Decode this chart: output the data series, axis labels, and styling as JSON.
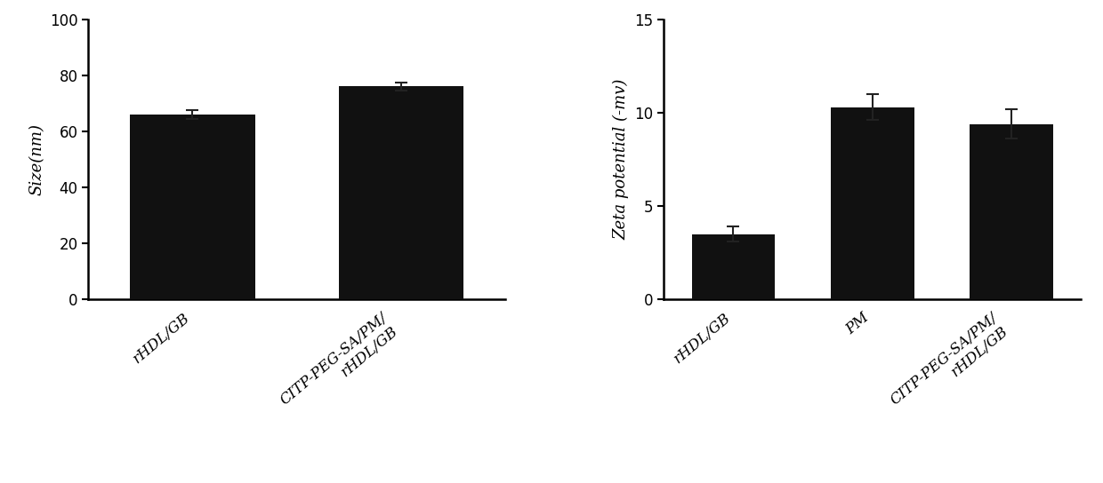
{
  "left_chart": {
    "categories": [
      "rHDL/GB",
      "CITP-PEG-SA/PM/\nrHDL/GB"
    ],
    "values": [
      66,
      76
    ],
    "errors": [
      1.5,
      1.5
    ],
    "ylabel": "Size(nm)",
    "ylim": [
      0,
      100
    ],
    "yticks": [
      0,
      20,
      40,
      60,
      80,
      100
    ]
  },
  "right_chart": {
    "categories": [
      "rHDL/GB",
      "PM",
      "CITP-PEG-SA/PM/\nrHDL/GB"
    ],
    "values": [
      3.5,
      10.3,
      9.4
    ],
    "errors": [
      0.4,
      0.7,
      0.8
    ],
    "ylabel": "Zeta potential (-mv)",
    "ylim": [
      0,
      15
    ],
    "yticks": [
      0,
      5,
      10,
      15
    ]
  },
  "bar_color": "#111111",
  "bar_width": 0.6,
  "background_color": "#ffffff",
  "tick_label_fontsize": 12,
  "axis_label_fontsize": 13,
  "ytick_fontsize": 12
}
